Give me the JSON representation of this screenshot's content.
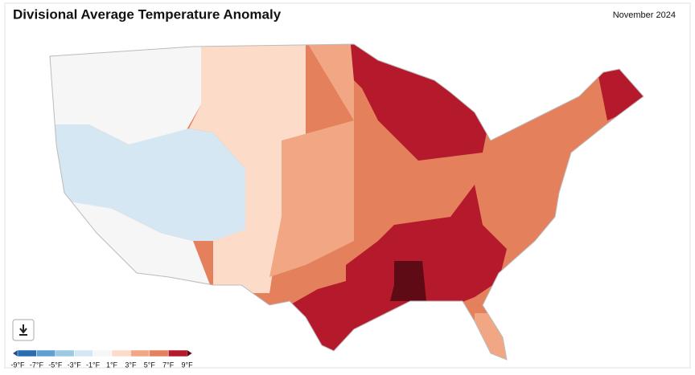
{
  "header": {
    "title": "Divisional Average Temperature Anomaly",
    "period": "November 2024"
  },
  "legend": {
    "labels": [
      "-9°F",
      "-7°F",
      "-5°F",
      "-3°F",
      "-1°F",
      "1°F",
      "3°F",
      "5°F",
      "7°F",
      "9°F"
    ],
    "colors": [
      "#2a6cb0",
      "#5f9fd2",
      "#9ccae3",
      "#d4e7f2",
      "#f6f6f6",
      "#fcdcc8",
      "#f2a784",
      "#e5805c",
      "#b41a2c"
    ],
    "low_color": "#1c4f8c",
    "high_color": "#5e0b16"
  }
}
